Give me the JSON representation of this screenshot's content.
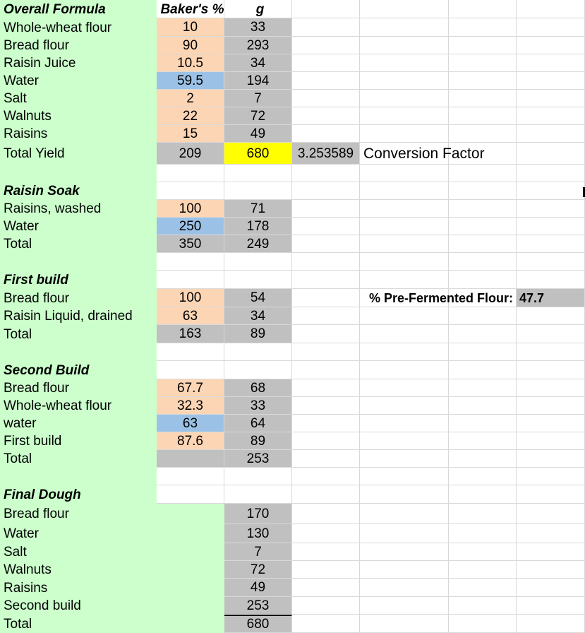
{
  "overall": {
    "title": "Overall Formula",
    "h_pct": "Baker's %",
    "h_g": "g",
    "rows": [
      {
        "name": "Whole-wheat flour",
        "pct": "10",
        "g": "33"
      },
      {
        "name": "Bread flour",
        "pct": "90",
        "g": "293"
      },
      {
        "name": "Raisin Juice",
        "pct": "10.5",
        "g": "34"
      },
      {
        "name": "Water",
        "pct": "59.5",
        "g": "194"
      },
      {
        "name": "Salt",
        "pct": "2",
        "g": "7"
      },
      {
        "name": "Walnuts",
        "pct": "22",
        "g": "72"
      },
      {
        "name": "Raisins",
        "pct": "15",
        "g": "49"
      }
    ],
    "total": {
      "name": "Total Yield",
      "pct": "209",
      "g": "680"
    },
    "factor": "3.253589",
    "factor_label": "Conversion Factor"
  },
  "soak": {
    "title": "Raisin Soak",
    "rows": [
      {
        "name": "Raisins, washed",
        "pct": "100",
        "g": "71"
      },
      {
        "name": "Water",
        "pct": "250",
        "g": "178"
      }
    ],
    "total": {
      "name": "Total",
      "pct": "350",
      "g": "249"
    }
  },
  "first": {
    "title": "First build",
    "rows": [
      {
        "name": "Bread flour",
        "pct": "100",
        "g": "54"
      },
      {
        "name": "Raisin Liquid, drained",
        "pct": "63",
        "g": "34"
      }
    ],
    "total": {
      "name": "Total",
      "pct": "163",
      "g": "89"
    },
    "pff_label": "% Pre-Fermented Flour:",
    "pff_value": "47.7"
  },
  "second": {
    "title": "Second Build",
    "rows": [
      {
        "name": "Bread flour",
        "pct": "67.7",
        "g": "68"
      },
      {
        "name": "Whole-wheat flour",
        "pct": "32.3",
        "g": "33"
      },
      {
        "name": "water",
        "pct": "63",
        "g": "64"
      },
      {
        "name": "First build",
        "pct": "87.6",
        "g": "89"
      }
    ],
    "total": {
      "name": "Total",
      "g": "253"
    }
  },
  "final": {
    "title": "Final Dough",
    "rows": [
      {
        "name": "Bread flour",
        "g": "170"
      },
      {
        "name": "Water",
        "g": "130"
      },
      {
        "name": "Salt",
        "g": "7"
      },
      {
        "name": "Walnuts",
        "g": "72"
      },
      {
        "name": "Raisins",
        "g": "49"
      },
      {
        "name": "Second build",
        "g": "253"
      }
    ],
    "total": {
      "name": "Total",
      "g": "680"
    }
  },
  "colors": {
    "label_column": "#ccffcc",
    "percent_input": "#fcd5b4",
    "water_input": "#9bc2e6",
    "calculated": "#c0c0c0",
    "highlight": "#ffff00"
  }
}
